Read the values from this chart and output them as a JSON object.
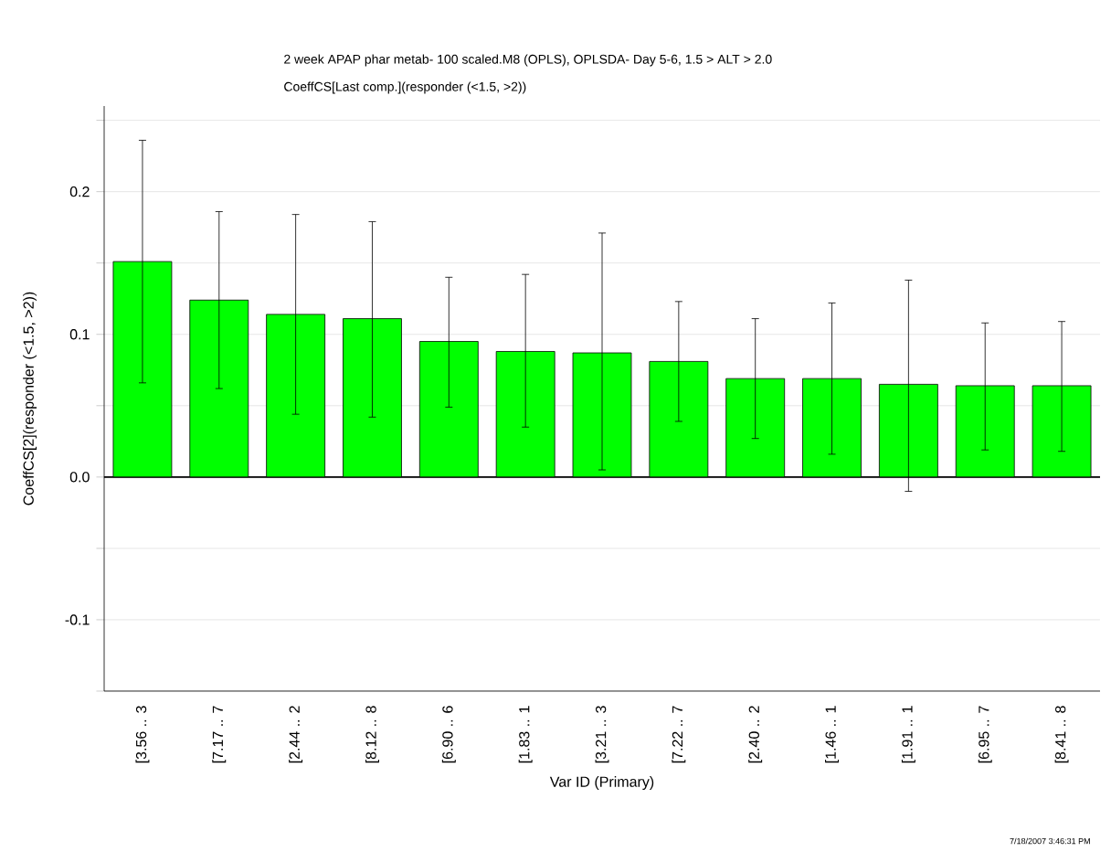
{
  "chart_data": {
    "type": "bar",
    "title": "2 week APAP phar metab- 100 scaled.M8 (OPLS), OPLSDA- Day 5-6, 1.5 > ALT > 2.0",
    "subtitle": "CoeffCS[Last comp.](responder (<1.5, >2))",
    "xlabel": "Var ID (Primary)",
    "ylabel": "CoeffCS[2](responder (<1.5, >2))",
    "annotations": [
      "7/18/2007 3:46:31 PM"
    ],
    "categories": [
      "[3.56 .. 3",
      "[7.17 .. 7",
      "[2.44 .. 2",
      "[8.12 .. 8",
      "[6.90 .. 6",
      "[1.83 .. 1",
      "[3.21 .. 3",
      "[7.22 .. 7",
      "[2.40 .. 2",
      "[1.46 .. 1",
      "[1.91 .. 1",
      "[6.95 .. 7",
      "[8.41 .. 8"
    ],
    "values": [
      0.151,
      0.124,
      0.114,
      0.111,
      0.095,
      0.088,
      0.087,
      0.081,
      0.069,
      0.069,
      0.065,
      0.064,
      0.064
    ],
    "errors": [
      [
        0.066,
        0.236
      ],
      [
        0.062,
        0.186
      ],
      [
        0.044,
        0.184
      ],
      [
        0.042,
        0.179
      ],
      [
        0.049,
        0.14
      ],
      [
        0.035,
        0.142
      ],
      [
        0.005,
        0.171
      ],
      [
        0.039,
        0.123
      ],
      [
        0.027,
        0.111
      ],
      [
        0.016,
        0.122
      ],
      [
        -0.01,
        0.138
      ],
      [
        0.019,
        0.108
      ],
      [
        0.018,
        0.109
      ]
    ],
    "color": "#00ff00",
    "ylim": [
      -0.15,
      0.26
    ],
    "yticks": [
      {
        "value": -0.15,
        "label": null
      },
      -0.1,
      {
        "value": -0.05,
        "label": null
      },
      {
        "value": 0,
        "label": "0.0"
      },
      {
        "value": 0.05,
        "label": null
      },
      0.1,
      {
        "value": 0.15,
        "label": null
      },
      0.2,
      {
        "value": 0.25,
        "label": null
      }
    ],
    "grid": "y",
    "legend": false
  }
}
